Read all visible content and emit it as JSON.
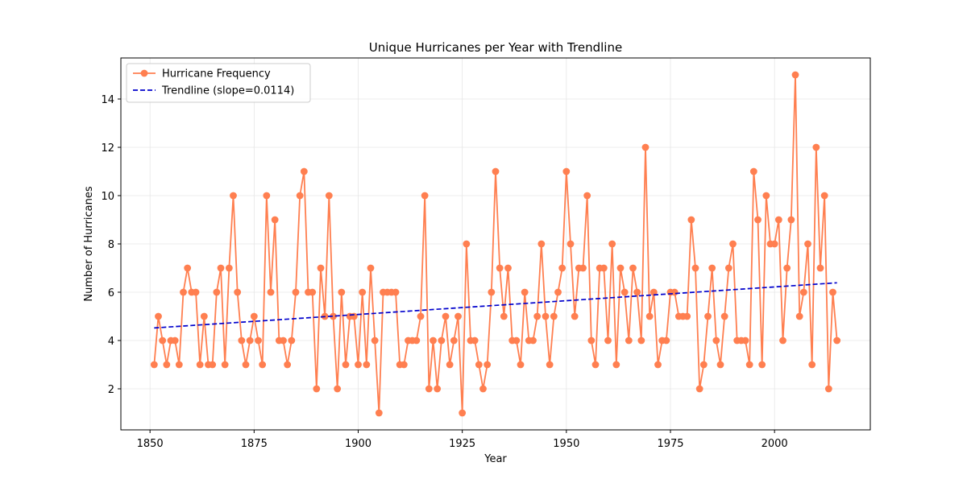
{
  "chart_data": {
    "type": "line",
    "title": "Unique Hurricanes per Year with Trendline",
    "xlabel": "Year",
    "ylabel": "Number of Hurricanes",
    "xlim": [
      1843,
      2023
    ],
    "ylim": [
      0.3,
      15.7
    ],
    "xticks": [
      1850,
      1875,
      1900,
      1925,
      1950,
      1975,
      2000
    ],
    "yticks": [
      2,
      4,
      6,
      8,
      10,
      12,
      14
    ],
    "grid": true,
    "legend_position": "upper-left",
    "series": [
      {
        "name": "Hurricane Frequency",
        "color": "#ff7f50",
        "marker": "circle",
        "x": [
          1851,
          1852,
          1853,
          1854,
          1855,
          1856,
          1857,
          1858,
          1859,
          1860,
          1861,
          1862,
          1863,
          1864,
          1865,
          1866,
          1867,
          1868,
          1869,
          1870,
          1871,
          1872,
          1873,
          1874,
          1875,
          1876,
          1877,
          1878,
          1879,
          1880,
          1881,
          1882,
          1883,
          1884,
          1885,
          1886,
          1887,
          1888,
          1889,
          1890,
          1891,
          1892,
          1893,
          1894,
          1895,
          1896,
          1897,
          1898,
          1899,
          1900,
          1901,
          1902,
          1903,
          1904,
          1905,
          1906,
          1907,
          1908,
          1909,
          1910,
          1911,
          1912,
          1913,
          1914,
          1915,
          1916,
          1917,
          1918,
          1919,
          1920,
          1921,
          1922,
          1923,
          1924,
          1925,
          1926,
          1927,
          1928,
          1929,
          1930,
          1931,
          1932,
          1933,
          1934,
          1935,
          1936,
          1937,
          1938,
          1939,
          1940,
          1941,
          1942,
          1943,
          1944,
          1945,
          1946,
          1947,
          1948,
          1949,
          1950,
          1951,
          1952,
          1953,
          1954,
          1955,
          1956,
          1957,
          1958,
          1959,
          1960,
          1961,
          1962,
          1963,
          1964,
          1965,
          1966,
          1967,
          1968,
          1969,
          1970,
          1971,
          1972,
          1973,
          1974,
          1975,
          1976,
          1977,
          1978,
          1979,
          1980,
          1981,
          1982,
          1983,
          1984,
          1985,
          1986,
          1987,
          1988,
          1989,
          1990,
          1991,
          1992,
          1993,
          1994,
          1995,
          1996,
          1997,
          1998,
          1999,
          2000,
          2001,
          2002,
          2003,
          2004,
          2005,
          2006,
          2007,
          2008,
          2009,
          2010,
          2011,
          2012,
          2013,
          2014,
          2015
        ],
        "y": [
          3,
          5,
          4,
          3,
          4,
          4,
          3,
          6,
          7,
          6,
          6,
          3,
          5,
          3,
          3,
          6,
          7,
          3,
          7,
          10,
          6,
          4,
          3,
          4,
          5,
          4,
          3,
          10,
          6,
          9,
          4,
          4,
          3,
          4,
          6,
          10,
          11,
          6,
          6,
          2,
          7,
          5,
          10,
          5,
          2,
          6,
          3,
          5,
          5,
          3,
          6,
          3,
          7,
          4,
          1,
          6,
          6,
          6,
          6,
          3,
          3,
          4,
          4,
          4,
          5,
          10,
          2,
          4,
          2,
          4,
          5,
          3,
          4,
          5,
          1,
          8,
          4,
          4,
          3,
          2,
          3,
          6,
          11,
          7,
          5,
          7,
          4,
          4,
          3,
          6,
          4,
          4,
          5,
          8,
          5,
          3,
          5,
          6,
          7,
          11,
          8,
          5,
          7,
          7,
          10,
          4,
          3,
          7,
          7,
          4,
          8,
          3,
          7,
          6,
          4,
          7,
          6,
          4,
          12,
          5,
          6,
          3,
          4,
          4,
          6,
          6,
          5,
          5,
          5,
          9,
          7,
          2,
          3,
          5,
          7,
          4,
          3,
          5,
          7,
          8,
          4,
          4,
          4,
          3,
          11,
          9,
          3,
          10,
          8,
          8,
          9,
          4,
          7,
          9,
          15,
          5,
          6,
          8,
          3,
          12,
          7,
          10,
          2,
          6,
          4
        ]
      },
      {
        "name": "Trendline (slope=0.0114)",
        "color": "#0000cc",
        "style": "dashed",
        "x": [
          1851,
          2015
        ],
        "y": [
          4.52,
          6.39
        ]
      }
    ]
  }
}
